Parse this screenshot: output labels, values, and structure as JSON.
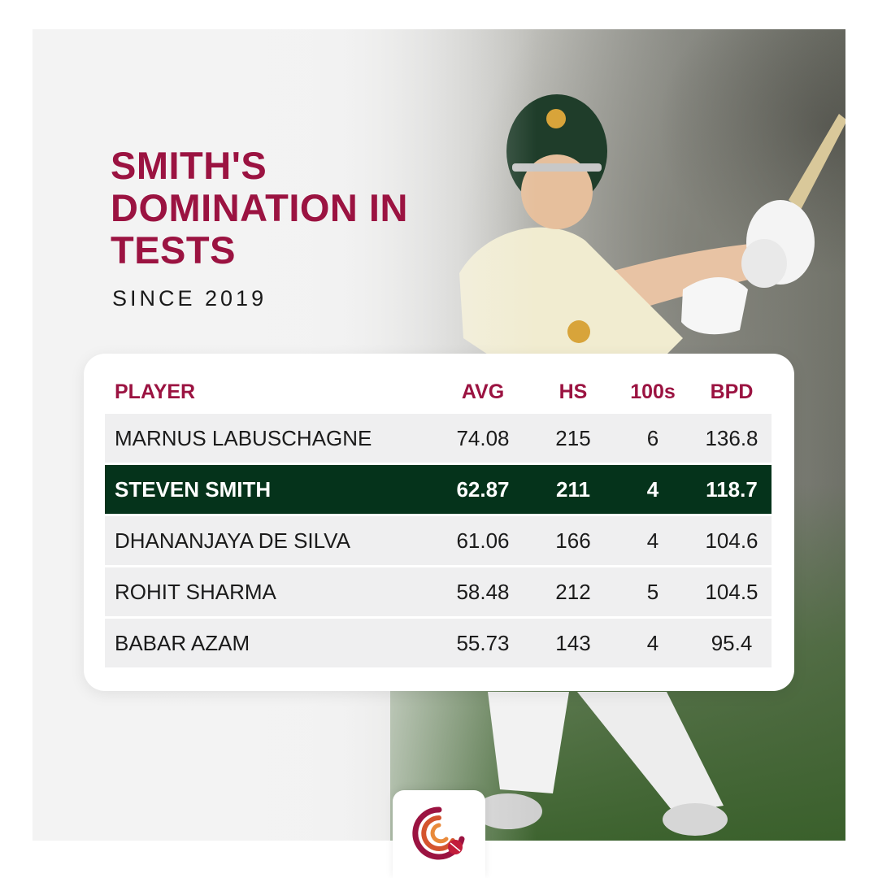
{
  "title": "SMITH'S DOMINATION IN TESTS",
  "subtitle": "SINCE 2019",
  "colors": {
    "title": "#9b1341",
    "header_text": "#9b1341",
    "highlight_row": "#05331b",
    "row_bg": "#efeff0"
  },
  "table": {
    "headers": {
      "player": "PLAYER",
      "avg": "AVG",
      "hs": "HS",
      "hundreds": "100s",
      "bpd": "BPD"
    },
    "rows": [
      {
        "player": "MARNUS LABUSCHAGNE",
        "avg": "74.08",
        "hs": "215",
        "hundreds": "6",
        "bpd": "136.8",
        "highlight": false
      },
      {
        "player": "STEVEN SMITH",
        "avg": "62.87",
        "hs": "211",
        "hundreds": "4",
        "bpd": "118.7",
        "highlight": true
      },
      {
        "player": "DHANANJAYA DE SILVA",
        "avg": "61.06",
        "hs": "166",
        "hundreds": "4",
        "bpd": "104.6",
        "highlight": false
      },
      {
        "player": "ROHIT SHARMA",
        "avg": "58.48",
        "hs": "212",
        "hundreds": "5",
        "bpd": "104.5",
        "highlight": false
      },
      {
        "player": "BABAR AZAM",
        "avg": "55.73",
        "hs": "143",
        "hundreds": "4",
        "bpd": "95.4",
        "highlight": false
      }
    ]
  },
  "logo": {
    "icon": "cricket-ball-logo-icon"
  }
}
